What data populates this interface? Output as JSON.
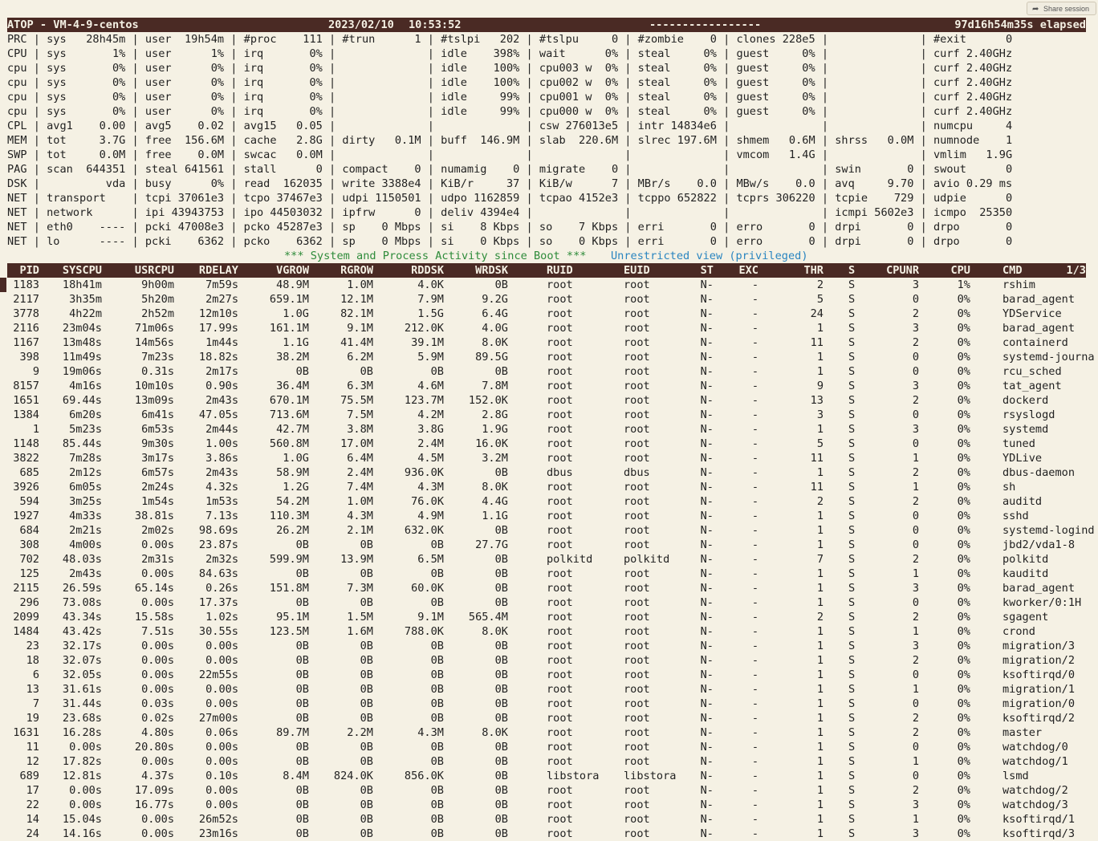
{
  "share": {
    "label": "Share session",
    "icon": "share-icon"
  },
  "top_bar": {
    "title": "ATOP - VM-4-9-centos",
    "date": "2023/02/10",
    "time": "10:53:52",
    "dashes": "-----------------",
    "elapsed": "97d16h54m35s elapsed"
  },
  "sys_lines": [
    {
      "text": "PRC | sys   28h45m | user  19h54m | #proc    111 | #trun      1 | #tslpi   202 | #tslpu     0 | #zombie    0 | clones 228e5 |              | #exit      0"
    },
    {
      "text": "CPU | sys       1% | user      1% | irq       0% |              | idle    398% | wait      0% | steal     0% | guest     0% |              | curf 2.40GHz"
    },
    {
      "text": "cpu | sys       0% | user      0% | irq       0% |              | idle    100% | cpu003 w  0% | steal     0% | guest     0% |              | curf 2.40GHz"
    },
    {
      "text": "cpu | sys       0% | user      0% | irq       0% |              | idle    100% | cpu002 w  0% | steal     0% | guest     0% |              | curf 2.40GHz"
    },
    {
      "text": "cpu | sys       0% | user      0% | irq       0% |              | idle     99% | cpu001 w  0% | steal     0% | guest     0% |              | curf 2.40GHz"
    },
    {
      "text": "cpu | sys       0% | user      0% | irq       0% |              | idle     99% | cpu000 w  0% | steal     0% | guest     0% |              | curf 2.40GHz"
    },
    {
      "text": "CPL | avg1    0.00 | avg5    0.02 | avg15   0.05 |              |              | csw 276013e5 | intr 14834e6 |              |              | numcpu     4"
    },
    {
      "text": "MEM | tot     3.7G | free  156.6M | cache   2.8G | dirty   0.1M | buff  146.9M | slab  220.6M | slrec 197.6M | shmem   0.6M | shrss   0.0M | numnode    1"
    },
    {
      "text": "SWP | tot     0.0M | free    0.0M | swcac   0.0M |              |              |              |              | vmcom   1.4G |              | vmlim   1.9G"
    },
    {
      "text": "PAG | scan  644351 | steal 641561 | stall      0 | compact    0 | numamig    0 | migrate    0 |              |              | swin       0 | swout      0"
    },
    {
      "text": "DSK |          vda | busy      0% | read  162035 | write 3388e4 | KiB/r     37 | KiB/w      7 | MBr/s    0.0 | MBw/s    0.0 | avq     9.70 | avio 0.29 ms"
    },
    {
      "text": "NET | transport    | tcpi 37061e3 | tcpo 37467e3 | udpi 1150501 | udpo 1162859 | tcpao 4152e3 | tcppo 652822 | tcprs 306220 | tcpie    729 | udpie      0"
    },
    {
      "text": "NET | network      | ipi 43943753 | ipo 44503032 | ipfrw      0 | deliv 4394e4 |              |              |              | icmpi 5602e3 | icmpo  25350"
    },
    {
      "text": "NET | eth0    ---- | pcki 47008e3 | pcko 45287e3 | sp    0 Mbps | si    8 Kbps | so    7 Kbps | erri       0 | erro       0 | drpi       0 | drpo       0"
    },
    {
      "text": "NET | lo      ---- | pcki    6362 | pcko    6362 | sp    0 Mbps | si    0 Kbps | so    0 Kbps | erri       0 | erro       0 | drpi       0 | drpo       0"
    }
  ],
  "activity": {
    "banner": "*** System and Process Activity since Boot ***",
    "view": "Unrestricted view (privileged)"
  },
  "proc_headers": [
    "PID",
    "SYSCPU",
    "USRCPU",
    "RDELAY",
    "VGROW",
    "RGROW",
    "RDDSK",
    "WRDSK",
    "RUID",
    "EUID",
    "ST",
    "EXC",
    "THR",
    "S",
    "CPUNR",
    "CPU",
    "CMD",
    "1/3"
  ],
  "processes": [
    [
      "1183",
      "18h41m",
      "9h00m",
      "7m59s",
      "48.9M",
      "1.0M",
      "4.0K",
      "0B",
      "root",
      "root",
      "N-",
      "-",
      "2",
      "S",
      "3",
      "1%",
      "rshim"
    ],
    [
      "2117",
      "3h35m",
      "5h20m",
      "2m27s",
      "659.1M",
      "12.1M",
      "7.9M",
      "9.2G",
      "root",
      "root",
      "N-",
      "-",
      "5",
      "S",
      "0",
      "0%",
      "barad_agent"
    ],
    [
      "3778",
      "4h22m",
      "2h52m",
      "12m10s",
      "1.0G",
      "82.1M",
      "1.5G",
      "6.4G",
      "root",
      "root",
      "N-",
      "-",
      "24",
      "S",
      "2",
      "0%",
      "YDService"
    ],
    [
      "2116",
      "23m04s",
      "71m06s",
      "17.99s",
      "161.1M",
      "9.1M",
      "212.0K",
      "4.0G",
      "root",
      "root",
      "N-",
      "-",
      "1",
      "S",
      "3",
      "0%",
      "barad_agent"
    ],
    [
      "1167",
      "13m48s",
      "14m56s",
      "1m44s",
      "1.1G",
      "41.4M",
      "39.1M",
      "8.0K",
      "root",
      "root",
      "N-",
      "-",
      "11",
      "S",
      "2",
      "0%",
      "containerd"
    ],
    [
      "398",
      "11m49s",
      "7m23s",
      "18.82s",
      "38.2M",
      "6.2M",
      "5.9M",
      "89.5G",
      "root",
      "root",
      "N-",
      "-",
      "1",
      "S",
      "0",
      "0%",
      "systemd-journa"
    ],
    [
      "9",
      "19m06s",
      "0.31s",
      "2m17s",
      "0B",
      "0B",
      "0B",
      "0B",
      "root",
      "root",
      "N-",
      "-",
      "1",
      "S",
      "0",
      "0%",
      "rcu_sched"
    ],
    [
      "8157",
      "4m16s",
      "10m10s",
      "0.90s",
      "36.4M",
      "6.3M",
      "4.6M",
      "7.8M",
      "root",
      "root",
      "N-",
      "-",
      "9",
      "S",
      "3",
      "0%",
      "tat_agent"
    ],
    [
      "1651",
      "69.44s",
      "13m09s",
      "2m43s",
      "670.1M",
      "75.5M",
      "123.7M",
      "152.0K",
      "root",
      "root",
      "N-",
      "-",
      "13",
      "S",
      "2",
      "0%",
      "dockerd"
    ],
    [
      "1384",
      "6m20s",
      "6m41s",
      "47.05s",
      "713.6M",
      "7.5M",
      "4.2M",
      "2.8G",
      "root",
      "root",
      "N-",
      "-",
      "3",
      "S",
      "0",
      "0%",
      "rsyslogd"
    ],
    [
      "1",
      "5m23s",
      "6m53s",
      "2m44s",
      "42.7M",
      "3.8M",
      "3.8G",
      "1.9G",
      "root",
      "root",
      "N-",
      "-",
      "1",
      "S",
      "3",
      "0%",
      "systemd"
    ],
    [
      "1148",
      "85.44s",
      "9m30s",
      "1.00s",
      "560.8M",
      "17.0M",
      "2.4M",
      "16.0K",
      "root",
      "root",
      "N-",
      "-",
      "5",
      "S",
      "0",
      "0%",
      "tuned"
    ],
    [
      "3822",
      "7m28s",
      "3m17s",
      "3.86s",
      "1.0G",
      "6.4M",
      "4.5M",
      "3.2M",
      "root",
      "root",
      "N-",
      "-",
      "11",
      "S",
      "1",
      "0%",
      "YDLive"
    ],
    [
      "685",
      "2m12s",
      "6m57s",
      "2m43s",
      "58.9M",
      "2.4M",
      "936.0K",
      "0B",
      "dbus",
      "dbus",
      "N-",
      "-",
      "1",
      "S",
      "2",
      "0%",
      "dbus-daemon"
    ],
    [
      "3926",
      "6m05s",
      "2m24s",
      "4.32s",
      "1.2G",
      "7.4M",
      "4.3M",
      "8.0K",
      "root",
      "root",
      "N-",
      "-",
      "11",
      "S",
      "1",
      "0%",
      "sh"
    ],
    [
      "594",
      "3m25s",
      "1m54s",
      "1m53s",
      "54.2M",
      "1.0M",
      "76.0K",
      "4.4G",
      "root",
      "root",
      "N-",
      "-",
      "2",
      "S",
      "2",
      "0%",
      "auditd"
    ],
    [
      "1927",
      "4m33s",
      "38.81s",
      "7.13s",
      "110.3M",
      "4.3M",
      "4.9M",
      "1.1G",
      "root",
      "root",
      "N-",
      "-",
      "1",
      "S",
      "0",
      "0%",
      "sshd"
    ],
    [
      "684",
      "2m21s",
      "2m02s",
      "98.69s",
      "26.2M",
      "2.1M",
      "632.0K",
      "0B",
      "root",
      "root",
      "N-",
      "-",
      "1",
      "S",
      "0",
      "0%",
      "systemd-logind"
    ],
    [
      "308",
      "4m00s",
      "0.00s",
      "23.87s",
      "0B",
      "0B",
      "0B",
      "27.7G",
      "root",
      "root",
      "N-",
      "-",
      "1",
      "S",
      "0",
      "0%",
      "jbd2/vda1-8"
    ],
    [
      "702",
      "48.03s",
      "2m31s",
      "2m32s",
      "599.9M",
      "13.9M",
      "6.5M",
      "0B",
      "polkitd",
      "polkitd",
      "N-",
      "-",
      "7",
      "S",
      "2",
      "0%",
      "polkitd"
    ],
    [
      "125",
      "2m43s",
      "0.00s",
      "84.63s",
      "0B",
      "0B",
      "0B",
      "0B",
      "root",
      "root",
      "N-",
      "-",
      "1",
      "S",
      "1",
      "0%",
      "kauditd"
    ],
    [
      "2115",
      "26.59s",
      "65.14s",
      "0.26s",
      "151.8M",
      "7.3M",
      "60.0K",
      "0B",
      "root",
      "root",
      "N-",
      "-",
      "1",
      "S",
      "3",
      "0%",
      "barad_agent"
    ],
    [
      "296",
      "73.08s",
      "0.00s",
      "17.37s",
      "0B",
      "0B",
      "0B",
      "0B",
      "root",
      "root",
      "N-",
      "-",
      "1",
      "S",
      "0",
      "0%",
      "kworker/0:1H"
    ],
    [
      "2099",
      "43.34s",
      "15.58s",
      "1.02s",
      "95.1M",
      "1.5M",
      "9.1M",
      "565.4M",
      "root",
      "root",
      "N-",
      "-",
      "2",
      "S",
      "2",
      "0%",
      "sgagent"
    ],
    [
      "1484",
      "43.42s",
      "7.51s",
      "30.55s",
      "123.5M",
      "1.6M",
      "788.0K",
      "8.0K",
      "root",
      "root",
      "N-",
      "-",
      "1",
      "S",
      "1",
      "0%",
      "crond"
    ],
    [
      "23",
      "32.17s",
      "0.00s",
      "0.00s",
      "0B",
      "0B",
      "0B",
      "0B",
      "root",
      "root",
      "N-",
      "-",
      "1",
      "S",
      "3",
      "0%",
      "migration/3"
    ],
    [
      "18",
      "32.07s",
      "0.00s",
      "0.00s",
      "0B",
      "0B",
      "0B",
      "0B",
      "root",
      "root",
      "N-",
      "-",
      "1",
      "S",
      "2",
      "0%",
      "migration/2"
    ],
    [
      "6",
      "32.05s",
      "0.00s",
      "22m55s",
      "0B",
      "0B",
      "0B",
      "0B",
      "root",
      "root",
      "N-",
      "-",
      "1",
      "S",
      "0",
      "0%",
      "ksoftirqd/0"
    ],
    [
      "13",
      "31.61s",
      "0.00s",
      "0.00s",
      "0B",
      "0B",
      "0B",
      "0B",
      "root",
      "root",
      "N-",
      "-",
      "1",
      "S",
      "1",
      "0%",
      "migration/1"
    ],
    [
      "7",
      "31.44s",
      "0.03s",
      "0.00s",
      "0B",
      "0B",
      "0B",
      "0B",
      "root",
      "root",
      "N-",
      "-",
      "1",
      "S",
      "0",
      "0%",
      "migration/0"
    ],
    [
      "19",
      "23.68s",
      "0.02s",
      "27m00s",
      "0B",
      "0B",
      "0B",
      "0B",
      "root",
      "root",
      "N-",
      "-",
      "1",
      "S",
      "2",
      "0%",
      "ksoftirqd/2"
    ],
    [
      "1631",
      "16.28s",
      "4.80s",
      "0.06s",
      "89.7M",
      "2.2M",
      "4.3M",
      "8.0K",
      "root",
      "root",
      "N-",
      "-",
      "1",
      "S",
      "2",
      "0%",
      "master"
    ],
    [
      "11",
      "0.00s",
      "20.80s",
      "0.00s",
      "0B",
      "0B",
      "0B",
      "0B",
      "root",
      "root",
      "N-",
      "-",
      "1",
      "S",
      "0",
      "0%",
      "watchdog/0"
    ],
    [
      "12",
      "17.82s",
      "0.00s",
      "0.00s",
      "0B",
      "0B",
      "0B",
      "0B",
      "root",
      "root",
      "N-",
      "-",
      "1",
      "S",
      "1",
      "0%",
      "watchdog/1"
    ],
    [
      "689",
      "12.81s",
      "4.37s",
      "0.10s",
      "8.4M",
      "824.0K",
      "856.0K",
      "0B",
      "libstora",
      "libstora",
      "N-",
      "-",
      "1",
      "S",
      "0",
      "0%",
      "lsmd"
    ],
    [
      "17",
      "0.00s",
      "17.09s",
      "0.00s",
      "0B",
      "0B",
      "0B",
      "0B",
      "root",
      "root",
      "N-",
      "-",
      "1",
      "S",
      "2",
      "0%",
      "watchdog/2"
    ],
    [
      "22",
      "0.00s",
      "16.77s",
      "0.00s",
      "0B",
      "0B",
      "0B",
      "0B",
      "root",
      "root",
      "N-",
      "-",
      "1",
      "S",
      "3",
      "0%",
      "watchdog/3"
    ],
    [
      "14",
      "15.04s",
      "0.00s",
      "26m52s",
      "0B",
      "0B",
      "0B",
      "0B",
      "root",
      "root",
      "N-",
      "-",
      "1",
      "S",
      "1",
      "0%",
      "ksoftirqd/1"
    ],
    [
      "24",
      "14.16s",
      "0.00s",
      "23m16s",
      "0B",
      "0B",
      "0B",
      "0B",
      "root",
      "root",
      "N-",
      "-",
      "1",
      "S",
      "3",
      "0%",
      "ksoftirqd/3"
    ]
  ],
  "colors": {
    "header_bg": "#4a2a24",
    "background": "#f5f1e4",
    "banner": "#2e8b3a",
    "view": "#2a85c0"
  }
}
